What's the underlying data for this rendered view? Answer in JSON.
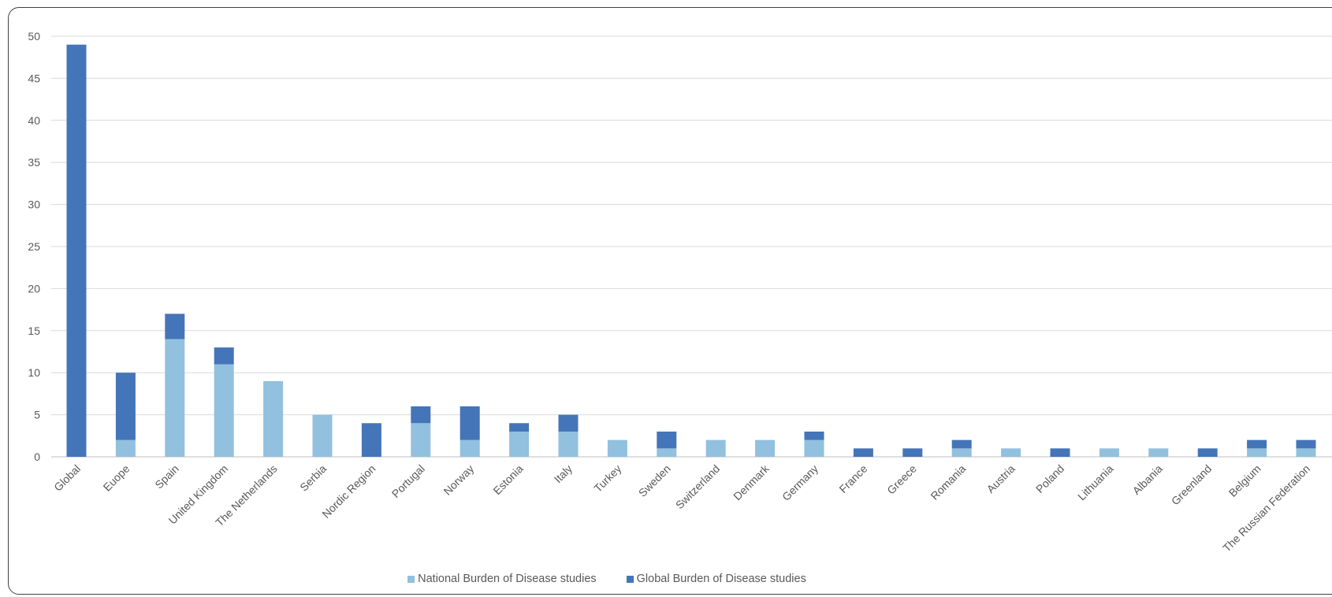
{
  "chart_data": {
    "type": "bar",
    "stacked": true,
    "categories": [
      "Global",
      "Euope",
      "Spain",
      "United Kingdom",
      "The Netherlands",
      "Serbia",
      "Nordic Region",
      "Portugal",
      "Norway",
      "Estonia",
      "Italy",
      "Turkey",
      "Sweden",
      "Switzerland",
      "Denmark",
      "Germany",
      "France",
      "Greece",
      "Romania",
      "Austria",
      "Poland",
      "Lithuania",
      "Albania",
      "Greenland",
      "Belgium",
      "The Russian Federation"
    ],
    "series": [
      {
        "name": "National Burden of Disease studies",
        "color": "#92c0df",
        "values": [
          0,
          2,
          14,
          11,
          9,
          5,
          0,
          4,
          2,
          3,
          3,
          2,
          1,
          2,
          2,
          2,
          0,
          0,
          1,
          1,
          0,
          1,
          1,
          0,
          1,
          1
        ]
      },
      {
        "name": "Global Burden of Disease studies",
        "color": "#4475b8",
        "values": [
          49,
          8,
          3,
          2,
          0,
          0,
          4,
          2,
          4,
          1,
          2,
          0,
          2,
          0,
          0,
          1,
          1,
          1,
          1,
          0,
          1,
          0,
          0,
          1,
          1,
          1
        ]
      }
    ],
    "ylim": [
      0,
      50
    ],
    "yticks": [
      0,
      5,
      10,
      15,
      20,
      25,
      30,
      35,
      40,
      45,
      50
    ],
    "grid": true,
    "legend_position": "bottom"
  }
}
